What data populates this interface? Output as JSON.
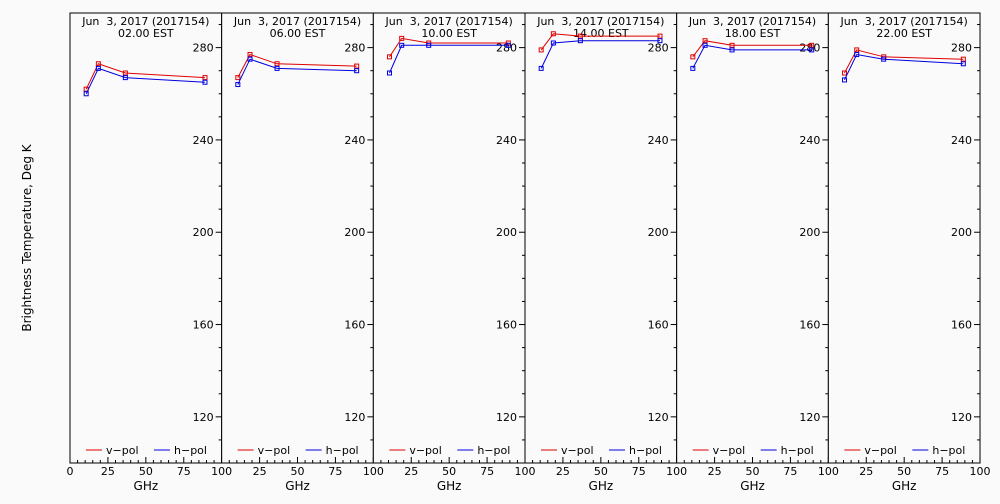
{
  "ylabel": "Brightness Temperature, Deg K",
  "legend": {
    "vpol_label": "v−pol",
    "hpol_label": "h−pol",
    "vpol_color": "#e00000",
    "hpol_color": "#0000e0"
  },
  "chart_data": [
    {
      "type": "line",
      "title": "Jun  3, 2017 (2017154)",
      "subtitle": "02.00 EST",
      "xlabel": "GHz",
      "x": [
        10.65,
        18.7,
        36.5,
        89.0
      ],
      "series": [
        {
          "name": "v−pol",
          "values": [
            262,
            273,
            269,
            267
          ]
        },
        {
          "name": "h−pol",
          "values": [
            260,
            271,
            267,
            265
          ]
        }
      ],
      "xlim": [
        0,
        100
      ],
      "ylim": [
        100,
        295
      ],
      "xticks": [
        "0",
        "25",
        "50",
        "75",
        "100"
      ],
      "yticks": [
        "120",
        "160",
        "200",
        "240",
        "280"
      ]
    },
    {
      "type": "line",
      "title": "Jun  3, 2017 (2017154)",
      "subtitle": "06.00 EST",
      "xlabel": "GHz",
      "x": [
        10.65,
        18.7,
        36.5,
        89.0
      ],
      "series": [
        {
          "name": "v−pol",
          "values": [
            267,
            277,
            273,
            272
          ]
        },
        {
          "name": "h−pol",
          "values": [
            264,
            275,
            271,
            270
          ]
        }
      ],
      "xlim": [
        0,
        100
      ],
      "ylim": [
        100,
        295
      ],
      "xticks": [
        "0",
        "25",
        "50",
        "75",
        "100"
      ],
      "yticks": [
        "120",
        "160",
        "200",
        "240",
        "280"
      ]
    },
    {
      "type": "line",
      "title": "Jun  3, 2017 (2017154)",
      "subtitle": "10.00 EST",
      "xlabel": "GHz",
      "x": [
        10.65,
        18.7,
        36.5,
        89.0
      ],
      "series": [
        {
          "name": "v−pol",
          "values": [
            276,
            284,
            282,
            282
          ]
        },
        {
          "name": "h−pol",
          "values": [
            269,
            281,
            281,
            281
          ]
        }
      ],
      "xlim": [
        0,
        100
      ],
      "ylim": [
        100,
        295
      ],
      "xticks": [
        "0",
        "25",
        "50",
        "75",
        "100"
      ],
      "yticks": [
        "120",
        "160",
        "200",
        "240",
        "280"
      ]
    },
    {
      "type": "line",
      "title": "Jun  3, 2017 (2017154)",
      "subtitle": "14.00 EST",
      "xlabel": "GHz",
      "x": [
        10.65,
        18.7,
        36.5,
        89.0
      ],
      "series": [
        {
          "name": "v−pol",
          "values": [
            279,
            286,
            285,
            285
          ]
        },
        {
          "name": "h−pol",
          "values": [
            271,
            282,
            283,
            283
          ]
        }
      ],
      "xlim": [
        0,
        100
      ],
      "ylim": [
        100,
        295
      ],
      "xticks": [
        "0",
        "25",
        "50",
        "75",
        "100"
      ],
      "yticks": [
        "120",
        "160",
        "200",
        "240",
        "280"
      ]
    },
    {
      "type": "line",
      "title": "Jun  3, 2017 (2017154)",
      "subtitle": "18.00 EST",
      "xlabel": "GHz",
      "x": [
        10.65,
        18.7,
        36.5,
        89.0
      ],
      "series": [
        {
          "name": "v−pol",
          "values": [
            276,
            283,
            281,
            281
          ]
        },
        {
          "name": "h−pol",
          "values": [
            271,
            281,
            279,
            279
          ]
        }
      ],
      "xlim": [
        0,
        100
      ],
      "ylim": [
        100,
        295
      ],
      "xticks": [
        "0",
        "25",
        "50",
        "75",
        "100"
      ],
      "yticks": [
        "120",
        "160",
        "200",
        "240",
        "280"
      ]
    },
    {
      "type": "line",
      "title": "Jun  3, 2017 (2017154)",
      "subtitle": "22.00 EST",
      "xlabel": "GHz",
      "x": [
        10.65,
        18.7,
        36.5,
        89.0
      ],
      "series": [
        {
          "name": "v−pol",
          "values": [
            269,
            279,
            276,
            275
          ]
        },
        {
          "name": "h−pol",
          "values": [
            266,
            277,
            275,
            273
          ]
        }
      ],
      "xlim": [
        0,
        100
      ],
      "ylim": [
        100,
        295
      ],
      "xticks": [
        "0",
        "25",
        "50",
        "75",
        "100"
      ],
      "yticks": [
        "120",
        "160",
        "200",
        "240",
        "280"
      ]
    }
  ]
}
